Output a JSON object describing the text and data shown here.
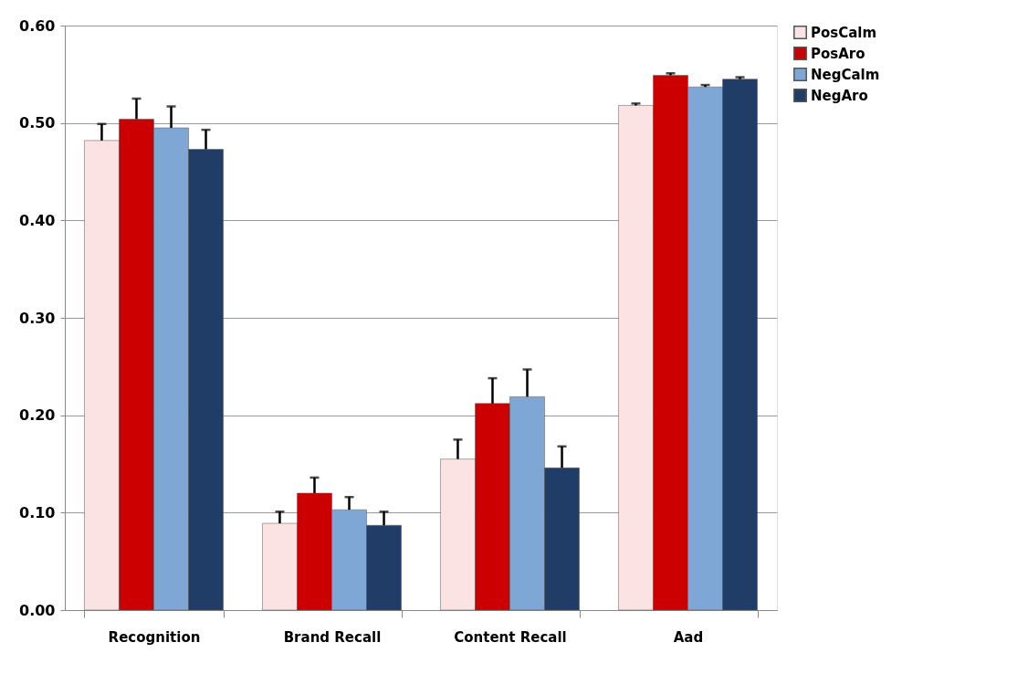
{
  "chart_data": {
    "type": "bar",
    "categories": [
      "Recognition",
      "Brand Recall",
      "Content Recall",
      "Aad"
    ],
    "series": [
      {
        "name": "PosCalm",
        "color": "#fbe3e3",
        "values": [
          0.482,
          0.089,
          0.155,
          0.518
        ],
        "errors": [
          [
            0.482,
            0.499
          ],
          [
            0.089,
            0.101
          ],
          [
            0.155,
            0.175
          ],
          [
            0.518,
            0.52
          ]
        ]
      },
      {
        "name": "PosAro",
        "color": "#cc0000",
        "values": [
          0.504,
          0.12,
          0.212,
          0.549
        ],
        "errors": [
          [
            0.504,
            0.525
          ],
          [
            0.12,
            0.136
          ],
          [
            0.212,
            0.238
          ],
          [
            0.549,
            0.551
          ]
        ]
      },
      {
        "name": "NegCalm",
        "color": "#7fa7d6",
        "values": [
          0.495,
          0.103,
          0.219,
          0.537
        ],
        "errors": [
          [
            0.495,
            0.517
          ],
          [
            0.103,
            0.116
          ],
          [
            0.219,
            0.247
          ],
          [
            0.537,
            0.539
          ]
        ]
      },
      {
        "name": "NegAro",
        "color": "#1f3d66",
        "values": [
          0.473,
          0.087,
          0.146,
          0.545
        ],
        "errors": [
          [
            0.473,
            0.493
          ],
          [
            0.087,
            0.101
          ],
          [
            0.146,
            0.168
          ],
          [
            0.545,
            0.547
          ]
        ]
      }
    ],
    "ylim": [
      0,
      0.6
    ],
    "yticks": [
      {
        "value": 0,
        "label": "0.00"
      },
      {
        "value": 0.1,
        "label": "0.10"
      },
      {
        "value": 0.2,
        "label": "0.20"
      },
      {
        "value": 0.3,
        "label": "0.30"
      },
      {
        "value": 0.4,
        "label": "0.40"
      },
      {
        "value": 0.5,
        "label": "0.50"
      },
      {
        "value": 0.6,
        "label": "0.60"
      }
    ],
    "grid": "y",
    "legend": "right"
  }
}
